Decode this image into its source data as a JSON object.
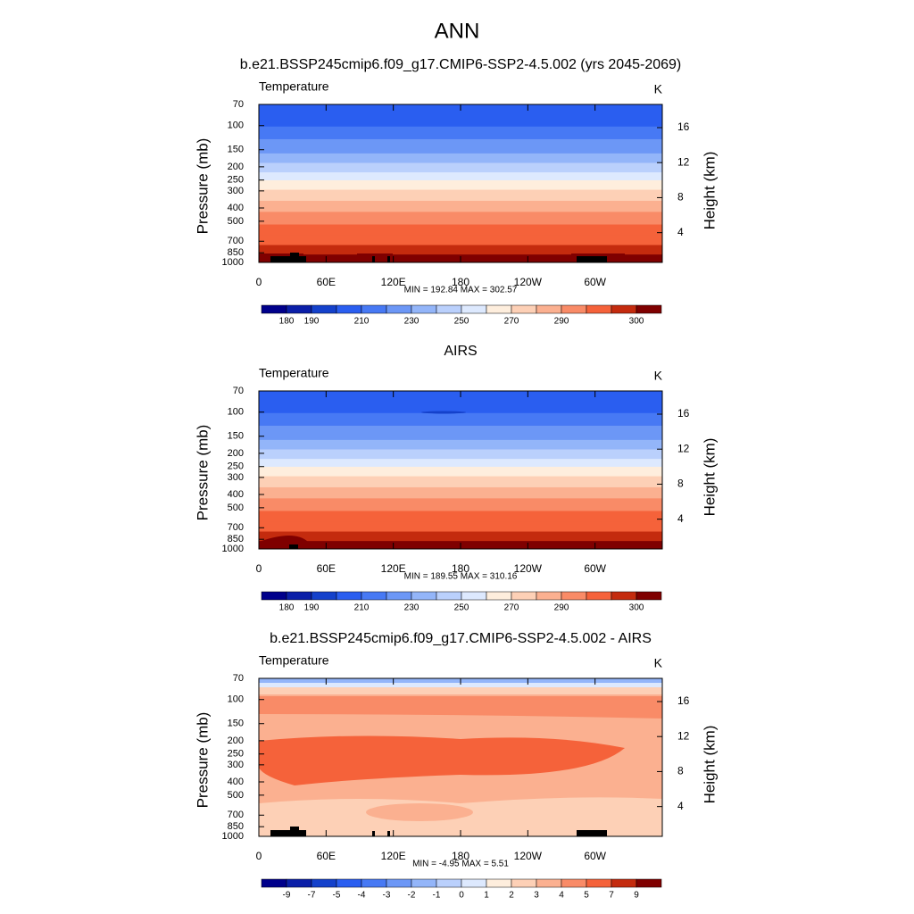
{
  "title": "ANN",
  "chart_data": [
    {
      "type": "contour",
      "title": "b.e21.BSSP245cmip6.f09_g17.CMIP6-SSP2-4.5.002 (yrs 2045-2069)",
      "left_string": "Temperature",
      "right_string": "K",
      "ylabel": "Pressure (mb)",
      "y2label": "Height (km)",
      "xlim": [
        0,
        360
      ],
      "xticks": [
        0,
        {
          "value": 60,
          "label": "60E"
        },
        {
          "value": 120,
          "label": "120E"
        },
        180,
        {
          "value": 240,
          "label": "120W"
        },
        {
          "value": 300,
          "label": "60W"
        }
      ],
      "ylim": [
        1000,
        70
      ],
      "log_scale": true,
      "yticks": [
        70,
        100,
        150,
        200,
        250,
        300,
        400,
        500,
        700,
        850,
        1000
      ],
      "y2lim": [
        0.6,
        18.65
      ],
      "y2ticks": [
        4,
        8,
        12,
        16
      ],
      "stats": "MIN = 192.84  MAX = 302.57",
      "colorbar": {
        "colors": [
          "#00008b",
          "#0b1fa8",
          "#1441cb",
          "#2a5ef0",
          "#4779f4",
          "#6c97f6",
          "#93b5f9",
          "#bad0fc",
          "#dde9fe",
          "#feeedd",
          "#fdd0b6",
          "#fbb090",
          "#f98b67",
          "#f5623a",
          "#c42b0e",
          "#7f0000"
        ],
        "levels": [
          180,
          190,
          null,
          210,
          null,
          230,
          null,
          250,
          null,
          270,
          null,
          290,
          null,
          null,
          300
        ]
      }
    },
    {
      "type": "contour",
      "title": "AIRS",
      "left_string": "Temperature",
      "right_string": "K",
      "ylabel": "Pressure (mb)",
      "y2label": "Height (km)",
      "xlim": [
        0,
        360
      ],
      "xticks": [
        0,
        {
          "value": 60,
          "label": "60E"
        },
        {
          "value": 120,
          "label": "120E"
        },
        180,
        {
          "value": 240,
          "label": "120W"
        },
        {
          "value": 300,
          "label": "60W"
        }
      ],
      "ylim": [
        1000,
        70
      ],
      "log_scale": true,
      "yticks": [
        70,
        100,
        150,
        200,
        250,
        300,
        400,
        500,
        700,
        850,
        1000
      ],
      "y2lim": [
        0.6,
        18.65
      ],
      "y2ticks": [
        4,
        8,
        12,
        16
      ],
      "stats": "MIN = 189.55  MAX = 310.16",
      "colorbar": {
        "colors": [
          "#00008b",
          "#0b1fa8",
          "#1441cb",
          "#2a5ef0",
          "#4779f4",
          "#6c97f6",
          "#93b5f9",
          "#bad0fc",
          "#dde9fe",
          "#feeedd",
          "#fdd0b6",
          "#fbb090",
          "#f98b67",
          "#f5623a",
          "#c42b0e",
          "#7f0000"
        ],
        "levels": [
          180,
          190,
          null,
          210,
          null,
          230,
          null,
          250,
          null,
          270,
          null,
          290,
          null,
          null,
          300
        ]
      }
    },
    {
      "type": "contour",
      "title": "b.e21.BSSP245cmip6.f09_g17.CMIP6-SSP2-4.5.002 - AIRS",
      "left_string": "Temperature",
      "right_string": "K",
      "ylabel": "Pressure (mb)",
      "y2label": "Height (km)",
      "xlim": [
        0,
        360
      ],
      "xticks": [
        0,
        {
          "value": 60,
          "label": "60E"
        },
        {
          "value": 120,
          "label": "120E"
        },
        180,
        {
          "value": 240,
          "label": "120W"
        },
        {
          "value": 300,
          "label": "60W"
        }
      ],
      "ylim": [
        1000,
        70
      ],
      "log_scale": true,
      "yticks": [
        70,
        100,
        150,
        200,
        250,
        300,
        400,
        500,
        700,
        850,
        1000
      ],
      "y2lim": [
        0.6,
        18.65
      ],
      "y2ticks": [
        4,
        8,
        12,
        16
      ],
      "stats": "MIN =  -4.95  MAX =   5.51",
      "colorbar": {
        "colors": [
          "#00008b",
          "#0b1fa8",
          "#1441cb",
          "#2a5ef0",
          "#4779f4",
          "#6c97f6",
          "#93b5f9",
          "#bad0fc",
          "#dde9fe",
          "#feeedd",
          "#fdd0b6",
          "#fbb090",
          "#f98b67",
          "#f5623a",
          "#c42b0e",
          "#7f0000"
        ],
        "levels": [
          -9,
          -7,
          -5,
          -4,
          -3,
          -2,
          -1,
          0,
          1,
          2,
          3,
          4,
          5,
          7,
          9
        ]
      }
    }
  ]
}
